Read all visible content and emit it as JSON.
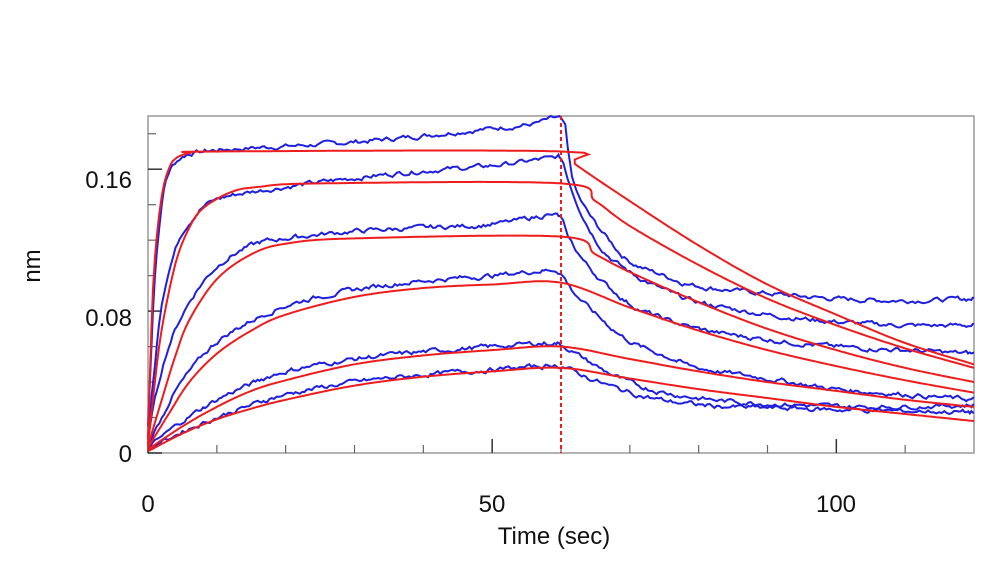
{
  "chart_data": {
    "type": "line",
    "xlabel": "Time (sec)",
    "ylabel": "nm",
    "xlim": [
      0,
      120
    ],
    "ylim": [
      0,
      0.19
    ],
    "x_ticks": [
      0,
      50,
      100
    ],
    "x_tick_labels": [
      "0",
      "50",
      "100"
    ],
    "y_ticks": [
      0,
      0.08,
      0.16
    ],
    "y_tick_labels": [
      "0",
      "0.08",
      "0.16"
    ],
    "grid": false,
    "dissociation_start": 60,
    "colors": {
      "measured": "#1f1fe0",
      "fit": "#ee1c1c",
      "marker": "#ee1c1c",
      "frame": "#999999"
    },
    "series": [
      {
        "measured": [
          [
            0,
            0.015
          ],
          [
            0.5,
            0.06
          ],
          [
            1,
            0.1
          ],
          [
            2,
            0.14
          ],
          [
            3,
            0.158
          ],
          [
            5,
            0.167
          ],
          [
            8,
            0.17
          ],
          [
            15,
            0.172
          ],
          [
            25,
            0.174
          ],
          [
            35,
            0.177
          ],
          [
            45,
            0.181
          ],
          [
            55,
            0.185
          ],
          [
            60,
            0.188
          ],
          [
            61,
            0.17
          ],
          [
            62,
            0.15
          ],
          [
            64,
            0.135
          ],
          [
            67,
            0.12
          ],
          [
            70,
            0.108
          ],
          [
            75,
            0.1
          ],
          [
            80,
            0.094
          ],
          [
            90,
            0.09
          ],
          [
            100,
            0.087
          ],
          [
            110,
            0.086
          ],
          [
            120,
            0.087
          ]
        ],
        "fit": [
          [
            0,
            0.008
          ],
          [
            0.5,
            0.07
          ],
          [
            1,
            0.11
          ],
          [
            2,
            0.145
          ],
          [
            3,
            0.16
          ],
          [
            4,
            0.166
          ],
          [
            6,
            0.169
          ],
          [
            10,
            0.17
          ],
          [
            60,
            0.17
          ],
          [
            62,
            0.163
          ],
          [
            70,
            0.142
          ],
          [
            80,
            0.117
          ],
          [
            90,
            0.095
          ],
          [
            100,
            0.078
          ],
          [
            110,
            0.062
          ],
          [
            120,
            0.05
          ]
        ]
      },
      {
        "measured": [
          [
            0,
            0.01
          ],
          [
            1,
            0.05
          ],
          [
            2,
            0.085
          ],
          [
            4,
            0.115
          ],
          [
            6,
            0.13
          ],
          [
            10,
            0.143
          ],
          [
            20,
            0.15
          ],
          [
            30,
            0.155
          ],
          [
            40,
            0.159
          ],
          [
            50,
            0.162
          ],
          [
            58,
            0.166
          ],
          [
            60,
            0.166
          ],
          [
            61,
            0.155
          ],
          [
            63,
            0.135
          ],
          [
            66,
            0.115
          ],
          [
            70,
            0.102
          ],
          [
            75,
            0.092
          ],
          [
            80,
            0.085
          ],
          [
            90,
            0.078
          ],
          [
            100,
            0.074
          ],
          [
            110,
            0.072
          ],
          [
            120,
            0.072
          ]
        ],
        "fit": [
          [
            0,
            0.005
          ],
          [
            1,
            0.04
          ],
          [
            2,
            0.07
          ],
          [
            4,
            0.107
          ],
          [
            6,
            0.127
          ],
          [
            8,
            0.138
          ],
          [
            12,
            0.147
          ],
          [
            16,
            0.15
          ],
          [
            25,
            0.152
          ],
          [
            60,
            0.152
          ],
          [
            65,
            0.142
          ],
          [
            70,
            0.128
          ],
          [
            80,
            0.106
          ],
          [
            90,
            0.087
          ],
          [
            100,
            0.072
          ],
          [
            110,
            0.059
          ],
          [
            120,
            0.048
          ]
        ]
      },
      {
        "measured": [
          [
            0,
            0.008
          ],
          [
            1,
            0.03
          ],
          [
            3,
            0.06
          ],
          [
            6,
            0.085
          ],
          [
            10,
            0.105
          ],
          [
            15,
            0.117
          ],
          [
            20,
            0.121
          ],
          [
            30,
            0.125
          ],
          [
            40,
            0.127
          ],
          [
            50,
            0.129
          ],
          [
            58,
            0.134
          ],
          [
            60,
            0.132
          ],
          [
            61,
            0.122
          ],
          [
            64,
            0.105
          ],
          [
            68,
            0.09
          ],
          [
            72,
            0.08
          ],
          [
            80,
            0.07
          ],
          [
            90,
            0.064
          ],
          [
            100,
            0.06
          ],
          [
            110,
            0.058
          ],
          [
            120,
            0.056
          ]
        ],
        "fit": [
          [
            0,
            0.004
          ],
          [
            2,
            0.03
          ],
          [
            4,
            0.055
          ],
          [
            6,
            0.075
          ],
          [
            10,
            0.098
          ],
          [
            15,
            0.112
          ],
          [
            20,
            0.118
          ],
          [
            30,
            0.121
          ],
          [
            60,
            0.122
          ],
          [
            65,
            0.112
          ],
          [
            70,
            0.102
          ],
          [
            80,
            0.085
          ],
          [
            90,
            0.07
          ],
          [
            100,
            0.058
          ],
          [
            110,
            0.048
          ],
          [
            120,
            0.04
          ]
        ]
      },
      {
        "measured": [
          [
            0,
            0.005
          ],
          [
            2,
            0.02
          ],
          [
            4,
            0.035
          ],
          [
            8,
            0.055
          ],
          [
            12,
            0.068
          ],
          [
            20,
            0.083
          ],
          [
            30,
            0.092
          ],
          [
            40,
            0.097
          ],
          [
            50,
            0.1
          ],
          [
            58,
            0.103
          ],
          [
            60,
            0.101
          ],
          [
            62,
            0.09
          ],
          [
            66,
            0.075
          ],
          [
            70,
            0.063
          ],
          [
            75,
            0.055
          ],
          [
            80,
            0.048
          ],
          [
            90,
            0.042
          ],
          [
            100,
            0.036
          ],
          [
            110,
            0.033
          ],
          [
            120,
            0.03
          ]
        ],
        "fit": [
          [
            0,
            0.003
          ],
          [
            3,
            0.022
          ],
          [
            6,
            0.04
          ],
          [
            10,
            0.056
          ],
          [
            15,
            0.069
          ],
          [
            20,
            0.078
          ],
          [
            30,
            0.088
          ],
          [
            40,
            0.093
          ],
          [
            50,
            0.095
          ],
          [
            60,
            0.096
          ],
          [
            70,
            0.082
          ],
          [
            80,
            0.069
          ],
          [
            90,
            0.058
          ],
          [
            100,
            0.049
          ],
          [
            110,
            0.041
          ],
          [
            120,
            0.034
          ]
        ]
      },
      {
        "measured": [
          [
            0,
            0.003
          ],
          [
            5,
            0.018
          ],
          [
            10,
            0.03
          ],
          [
            15,
            0.039
          ],
          [
            20,
            0.046
          ],
          [
            30,
            0.053
          ],
          [
            40,
            0.057
          ],
          [
            50,
            0.06
          ],
          [
            58,
            0.062
          ],
          [
            60,
            0.061
          ],
          [
            63,
            0.054
          ],
          [
            67,
            0.045
          ],
          [
            72,
            0.037
          ],
          [
            78,
            0.032
          ],
          [
            85,
            0.029
          ],
          [
            95,
            0.027
          ],
          [
            105,
            0.026
          ],
          [
            120,
            0.027
          ]
        ],
        "fit": [
          [
            0,
            0.002
          ],
          [
            5,
            0.015
          ],
          [
            10,
            0.026
          ],
          [
            15,
            0.035
          ],
          [
            20,
            0.041
          ],
          [
            30,
            0.05
          ],
          [
            40,
            0.055
          ],
          [
            50,
            0.058
          ],
          [
            60,
            0.06
          ],
          [
            70,
            0.053
          ],
          [
            80,
            0.046
          ],
          [
            90,
            0.04
          ],
          [
            100,
            0.035
          ],
          [
            110,
            0.03
          ],
          [
            120,
            0.026
          ]
        ]
      },
      {
        "measured": [
          [
            0,
            0.002
          ],
          [
            5,
            0.012
          ],
          [
            10,
            0.02
          ],
          [
            15,
            0.027
          ],
          [
            20,
            0.033
          ],
          [
            30,
            0.04
          ],
          [
            40,
            0.044
          ],
          [
            50,
            0.047
          ],
          [
            58,
            0.049
          ],
          [
            60,
            0.049
          ],
          [
            63,
            0.044
          ],
          [
            67,
            0.038
          ],
          [
            72,
            0.032
          ],
          [
            78,
            0.028
          ],
          [
            85,
            0.026
          ],
          [
            95,
            0.025
          ],
          [
            105,
            0.024
          ],
          [
            120,
            0.023
          ]
        ],
        "fit": [
          [
            0,
            0.001
          ],
          [
            5,
            0.011
          ],
          [
            10,
            0.019
          ],
          [
            15,
            0.025
          ],
          [
            20,
            0.03
          ],
          [
            30,
            0.038
          ],
          [
            40,
            0.043
          ],
          [
            50,
            0.046
          ],
          [
            60,
            0.048
          ],
          [
            70,
            0.042
          ],
          [
            80,
            0.036
          ],
          [
            90,
            0.031
          ],
          [
            100,
            0.026
          ],
          [
            110,
            0.022
          ],
          [
            120,
            0.018
          ]
        ]
      }
    ]
  }
}
